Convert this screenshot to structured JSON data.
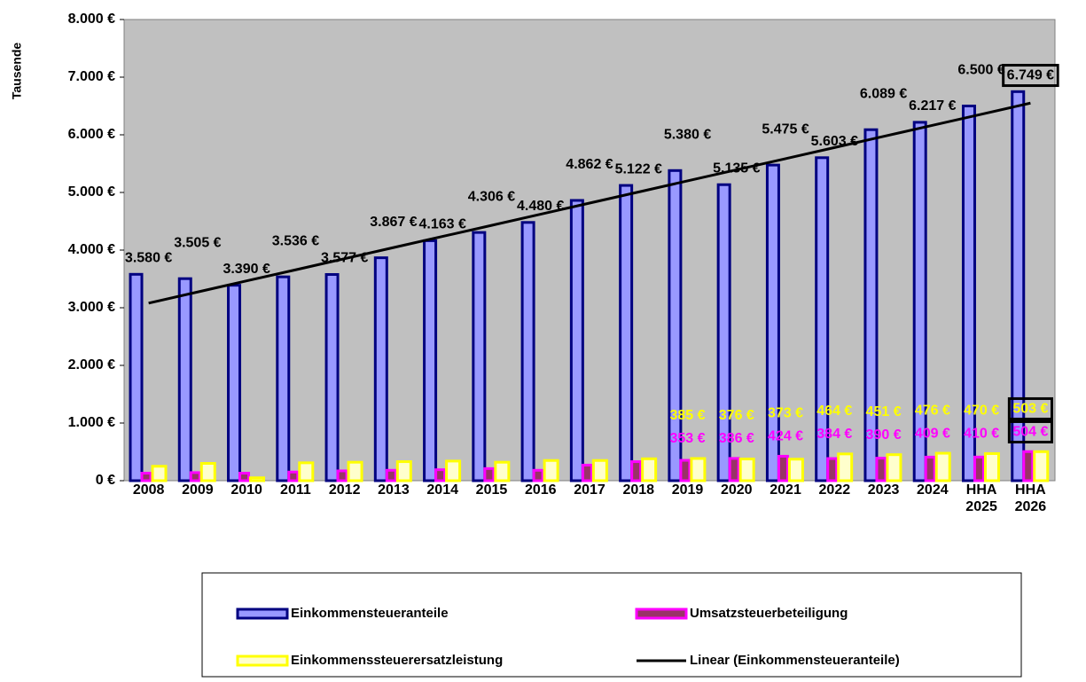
{
  "chart_data": {
    "type": "bar",
    "y_label": "Tausende",
    "categories": [
      "2008",
      "2009",
      "2010",
      "2011",
      "2012",
      "2013",
      "2014",
      "2015",
      "2016",
      "2017",
      "2018",
      "2019",
      "2020",
      "2021",
      "2022",
      "2023",
      "2024",
      "HHA 2025",
      "HHA 2026"
    ],
    "series": [
      {
        "name": "Einkommensteueranteile",
        "color": "#9999ff",
        "border": "#000080",
        "values": [
          3580,
          3505,
          3390,
          3536,
          3577,
          3867,
          4163,
          4306,
          4480,
          4862,
          5122,
          5380,
          5135,
          5475,
          5603,
          6089,
          6217,
          6500,
          6749
        ],
        "value_labels": [
          "3.580 €",
          "3.505 €",
          "3.390 €",
          "3.536 €",
          "3.577 €",
          "3.867 €",
          "4.163 €",
          "4.306 €",
          "4.480 €",
          "4.862 €",
          "5.122 €",
          "5.380 €",
          "5.135 €",
          "5.475 €",
          "5.603 €",
          "6.089 €",
          "6.217 €",
          "6.500 €",
          "6.749 €"
        ],
        "label_color": "#000000"
      },
      {
        "name": "Umsatzsteuerbeteiligung",
        "color": "#993366",
        "border": "#ff00ff",
        "values": [
          130,
          140,
          130,
          150,
          170,
          180,
          190,
          210,
          180,
          270,
          330,
          353,
          386,
          424,
          384,
          390,
          409,
          410,
          504
        ],
        "value_labels": [
          null,
          null,
          null,
          null,
          null,
          null,
          null,
          null,
          null,
          null,
          null,
          "353 €",
          "386 €",
          "424 €",
          "384 €",
          "390 €",
          "409 €",
          "410 €",
          "504 €"
        ],
        "label_color": "#ff00ff"
      },
      {
        "name": "Einkommenssteuerersatzleistung",
        "color": "#ffffcc",
        "border": "#ffff00",
        "values": [
          250,
          300,
          50,
          310,
          320,
          330,
          340,
          320,
          350,
          350,
          380,
          385,
          376,
          373,
          464,
          451,
          476,
          470,
          503
        ],
        "value_labels": [
          null,
          null,
          null,
          null,
          null,
          null,
          null,
          null,
          null,
          null,
          null,
          "385 €",
          "376 €",
          "373 €",
          "464 €",
          "451 €",
          "476 €",
          "470 €",
          "503 €"
        ],
        "label_color": "#ffff00"
      }
    ],
    "trend": {
      "name": "Linear (Einkommensteueranteile)",
      "color": "#000000",
      "values": [
        3080,
        3273,
        3466,
        3658,
        3851,
        4044,
        4237,
        4429,
        4622,
        4815,
        5008,
        5201,
        5393,
        5586,
        5779,
        5972,
        6164,
        6357,
        6550
      ]
    },
    "ylim": [
      0,
      8000
    ],
    "yticks": [
      {
        "value": 0,
        "label": "0 €"
      },
      {
        "value": 1000,
        "label": "1.000 €"
      },
      {
        "value": 2000,
        "label": "2.000 €"
      },
      {
        "value": 3000,
        "label": "3.000 €"
      },
      {
        "value": 4000,
        "label": "4.000 €"
      },
      {
        "value": 5000,
        "label": "5.000 €"
      },
      {
        "value": 6000,
        "label": "6.000 €"
      },
      {
        "value": 7000,
        "label": "7.000 €"
      },
      {
        "value": 8000,
        "label": "8.000 €"
      }
    ],
    "plot_background": "#c0c0c0",
    "legend": "bottom"
  }
}
